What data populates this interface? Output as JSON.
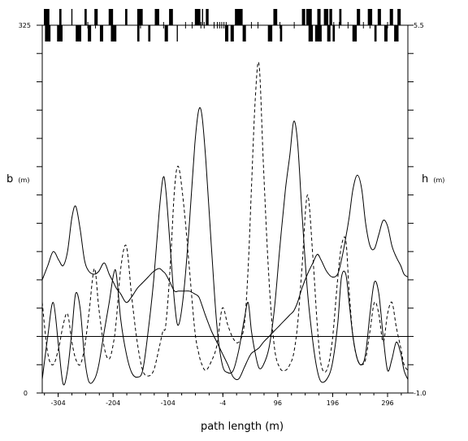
{
  "chart_data": {
    "type": "line",
    "title": "",
    "xlabel": "path length (m)",
    "ylabel_left": "b",
    "ylabel_left_unit": "(m)",
    "ylabel_right": "h",
    "ylabel_right_unit": "(m)",
    "xlim": [
      -333,
      333
    ],
    "ylim_left": [
      0,
      325
    ],
    "ylim_right": [
      -1.0,
      5.5
    ],
    "y_left_tick_labels": [
      "0",
      "325"
    ],
    "y_right_tick_labels": [
      "-1.0",
      "5.5"
    ],
    "x_tick_values": [
      -304,
      -204,
      -104,
      -4,
      96,
      196,
      296
    ],
    "x_tick_labels": [
      "-304",
      "-204",
      "-104",
      "-4",
      "96",
      "196",
      "296"
    ],
    "grid": false,
    "legend": "none",
    "reference_line": {
      "axis": "right",
      "value": 0
    },
    "series": [
      {
        "axis": "left",
        "style": "solid",
        "points": [
          [
            -333,
            12
          ],
          [
            -323,
            50
          ],
          [
            -313,
            80
          ],
          [
            -303,
            40
          ],
          [
            -295,
            8
          ],
          [
            -287,
            20
          ],
          [
            -279,
            55
          ],
          [
            -272,
            88
          ],
          [
            -264,
            75
          ],
          [
            -256,
            32
          ],
          [
            -248,
            10
          ],
          [
            -238,
            12
          ],
          [
            -230,
            25
          ],
          [
            -220,
            55
          ],
          [
            -211,
            80
          ],
          [
            -203,
            105
          ],
          [
            -198,
            105
          ],
          [
            -190,
            65
          ],
          [
            -180,
            35
          ],
          [
            -170,
            18
          ],
          [
            -160,
            14
          ],
          [
            -150,
            20
          ],
          [
            -140,
            55
          ],
          [
            -130,
            100
          ],
          [
            -120,
            160
          ],
          [
            -113,
            190
          ],
          [
            -108,
            180
          ],
          [
            -100,
            130
          ],
          [
            -92,
            80
          ],
          [
            -85,
            60
          ],
          [
            -75,
            90
          ],
          [
            -65,
            150
          ],
          [
            -55,
            220
          ],
          [
            -48,
            250
          ],
          [
            -42,
            245
          ],
          [
            -35,
            205
          ],
          [
            -25,
            130
          ],
          [
            -15,
            60
          ],
          [
            -5,
            25
          ],
          [
            5,
            18
          ],
          [
            15,
            20
          ],
          [
            25,
            38
          ],
          [
            35,
            65
          ],
          [
            42,
            80
          ],
          [
            48,
            55
          ],
          [
            55,
            35
          ],
          [
            62,
            22
          ],
          [
            70,
            25
          ],
          [
            80,
            40
          ],
          [
            90,
            75
          ],
          [
            100,
            130
          ],
          [
            110,
            180
          ],
          [
            118,
            210
          ],
          [
            125,
            240
          ],
          [
            132,
            222
          ],
          [
            140,
            160
          ],
          [
            150,
            90
          ],
          [
            160,
            45
          ],
          [
            168,
            20
          ],
          [
            175,
            10
          ],
          [
            185,
            12
          ],
          [
            195,
            25
          ],
          [
            205,
            60
          ],
          [
            212,
            102
          ],
          [
            220,
            105
          ],
          [
            226,
            80
          ],
          [
            233,
            50
          ],
          [
            241,
            30
          ],
          [
            249,
            25
          ],
          [
            256,
            35
          ],
          [
            264,
            70
          ],
          [
            272,
            98
          ],
          [
            280,
            88
          ],
          [
            288,
            50
          ],
          [
            296,
            20
          ],
          [
            304,
            30
          ],
          [
            312,
            45
          ],
          [
            320,
            35
          ],
          [
            326,
            20
          ],
          [
            333,
            12
          ]
        ]
      },
      {
        "axis": "left",
        "style": "dashed",
        "points": [
          [
            -333,
            80
          ],
          [
            -323,
            35
          ],
          [
            -313,
            25
          ],
          [
            -303,
            40
          ],
          [
            -295,
            60
          ],
          [
            -287,
            70
          ],
          [
            -279,
            45
          ],
          [
            -272,
            30
          ],
          [
            -264,
            25
          ],
          [
            -256,
            40
          ],
          [
            -248,
            70
          ],
          [
            -238,
            110
          ],
          [
            -230,
            75
          ],
          [
            -220,
            40
          ],
          [
            -211,
            30
          ],
          [
            -203,
            45
          ],
          [
            -198,
            65
          ],
          [
            -190,
            110
          ],
          [
            -180,
            130
          ],
          [
            -170,
            85
          ],
          [
            -160,
            45
          ],
          [
            -150,
            20
          ],
          [
            -140,
            15
          ],
          [
            -130,
            20
          ],
          [
            -120,
            40
          ],
          [
            -113,
            55
          ],
          [
            -108,
            60
          ],
          [
            -100,
            110
          ],
          [
            -92,
            180
          ],
          [
            -85,
            200
          ],
          [
            -75,
            165
          ],
          [
            -65,
            110
          ],
          [
            -55,
            55
          ],
          [
            -48,
            35
          ],
          [
            -42,
            25
          ],
          [
            -35,
            20
          ],
          [
            -25,
            28
          ],
          [
            -15,
            42
          ],
          [
            -5,
            75
          ],
          [
            5,
            60
          ],
          [
            15,
            48
          ],
          [
            25,
            45
          ],
          [
            35,
            60
          ],
          [
            42,
            110
          ],
          [
            48,
            180
          ],
          [
            55,
            260
          ],
          [
            62,
            290
          ],
          [
            70,
            200
          ],
          [
            80,
            100
          ],
          [
            90,
            40
          ],
          [
            100,
            22
          ],
          [
            110,
            20
          ],
          [
            118,
            25
          ],
          [
            125,
            35
          ],
          [
            132,
            60
          ],
          [
            140,
            110
          ],
          [
            150,
            175
          ],
          [
            160,
            120
          ],
          [
            168,
            60
          ],
          [
            175,
            25
          ],
          [
            185,
            20
          ],
          [
            195,
            45
          ],
          [
            205,
            100
          ],
          [
            212,
            130
          ],
          [
            220,
            135
          ],
          [
            226,
            90
          ],
          [
            233,
            50
          ],
          [
            241,
            30
          ],
          [
            249,
            25
          ],
          [
            256,
            30
          ],
          [
            264,
            55
          ],
          [
            272,
            80
          ],
          [
            280,
            70
          ],
          [
            288,
            45
          ],
          [
            296,
            70
          ],
          [
            304,
            80
          ],
          [
            312,
            58
          ],
          [
            320,
            40
          ],
          [
            326,
            25
          ],
          [
            333,
            20
          ]
        ]
      },
      {
        "axis": "right",
        "style": "solid",
        "points": [
          [
            -333,
            1.0
          ],
          [
            -323,
            1.25
          ],
          [
            -313,
            1.5
          ],
          [
            -303,
            1.35
          ],
          [
            -295,
            1.25
          ],
          [
            -287,
            1.5
          ],
          [
            -279,
            2.1
          ],
          [
            -272,
            2.3
          ],
          [
            -264,
            1.9
          ],
          [
            -256,
            1.35
          ],
          [
            -248,
            1.15
          ],
          [
            -238,
            1.1
          ],
          [
            -230,
            1.15
          ],
          [
            -220,
            1.3
          ],
          [
            -211,
            1.1
          ],
          [
            -203,
            0.95
          ],
          [
            -198,
            0.85
          ],
          [
            -190,
            0.75
          ],
          [
            -180,
            0.6
          ],
          [
            -170,
            0.7
          ],
          [
            -160,
            0.85
          ],
          [
            -150,
            0.95
          ],
          [
            -140,
            1.05
          ],
          [
            -130,
            1.15
          ],
          [
            -120,
            1.2
          ],
          [
            -113,
            1.15
          ],
          [
            -108,
            1.1
          ],
          [
            -100,
            0.95
          ],
          [
            -92,
            0.8
          ],
          [
            -85,
            0.8
          ],
          [
            -75,
            0.8
          ],
          [
            -65,
            0.8
          ],
          [
            -55,
            0.75
          ],
          [
            -48,
            0.7
          ],
          [
            -42,
            0.55
          ],
          [
            -35,
            0.35
          ],
          [
            -25,
            0.1
          ],
          [
            -15,
            -0.1
          ],
          [
            -5,
            -0.3
          ],
          [
            5,
            -0.5
          ],
          [
            15,
            -0.72
          ],
          [
            25,
            -0.75
          ],
          [
            35,
            -0.55
          ],
          [
            42,
            -0.4
          ],
          [
            48,
            -0.3
          ],
          [
            55,
            -0.25
          ],
          [
            62,
            -0.2
          ],
          [
            70,
            -0.1
          ],
          [
            80,
            0.0
          ],
          [
            90,
            0.1
          ],
          [
            100,
            0.2
          ],
          [
            110,
            0.3
          ],
          [
            118,
            0.38
          ],
          [
            125,
            0.45
          ],
          [
            132,
            0.6
          ],
          [
            140,
            0.85
          ],
          [
            150,
            1.1
          ],
          [
            160,
            1.3
          ],
          [
            168,
            1.45
          ],
          [
            175,
            1.35
          ],
          [
            185,
            1.15
          ],
          [
            195,
            1.05
          ],
          [
            205,
            1.1
          ],
          [
            212,
            1.35
          ],
          [
            220,
            1.75
          ],
          [
            226,
            2.1
          ],
          [
            233,
            2.6
          ],
          [
            241,
            2.85
          ],
          [
            249,
            2.6
          ],
          [
            256,
            2.0
          ],
          [
            264,
            1.6
          ],
          [
            272,
            1.55
          ],
          [
            280,
            1.8
          ],
          [
            288,
            2.05
          ],
          [
            296,
            1.95
          ],
          [
            304,
            1.6
          ],
          [
            312,
            1.4
          ],
          [
            320,
            1.25
          ],
          [
            326,
            1.1
          ],
          [
            333,
            1.05
          ]
        ]
      }
    ],
    "lattice_strip": {
      "blocks_up": [
        [
          -330,
          -320
        ],
        [
          -302,
          -298
        ],
        [
          -280,
          -278
        ],
        [
          -256,
          -252
        ],
        [
          -238,
          -232
        ],
        [
          -212,
          -204
        ],
        [
          -182,
          -178
        ],
        [
          -160,
          -150
        ],
        [
          -128,
          -120
        ],
        [
          -102,
          -95
        ],
        [
          -55,
          -45
        ],
        [
          -42,
          -40
        ],
        [
          -35,
          -30
        ],
        [
          18,
          32
        ],
        [
          88,
          95
        ],
        [
          140,
          146
        ],
        [
          148,
          158
        ],
        [
          168,
          174
        ],
        [
          180,
          188
        ],
        [
          190,
          195
        ],
        [
          208,
          212
        ],
        [
          240,
          246
        ],
        [
          260,
          268
        ],
        [
          278,
          284
        ],
        [
          300,
          306
        ],
        [
          314,
          320
        ]
      ],
      "blocks_down": [
        [
          -328,
          -318
        ],
        [
          -306,
          -296
        ],
        [
          -272,
          -262
        ],
        [
          -250,
          -244
        ],
        [
          -228,
          -222
        ],
        [
          -208,
          -198
        ],
        [
          -160,
          -156
        ],
        [
          -140,
          -136
        ],
        [
          -110,
          -104
        ],
        [
          -88,
          -86
        ],
        [
          0,
          6
        ],
        [
          10,
          16
        ],
        [
          32,
          38
        ],
        [
          78,
          86
        ],
        [
          100,
          104
        ],
        [
          152,
          160
        ],
        [
          164,
          176
        ],
        [
          186,
          192
        ],
        [
          196,
          200
        ],
        [
          232,
          240
        ],
        [
          272,
          276
        ],
        [
          290,
          296
        ],
        [
          308,
          316
        ]
      ],
      "thin_lines": [
        -250,
        -236,
        -154,
        -112,
        -72,
        -60,
        -44,
        -38,
        -20,
        -14,
        -10,
        -6,
        -2,
        2,
        48,
        60,
        100,
        126,
        198,
        208,
        224,
        252,
        264,
        296
      ]
    }
  }
}
